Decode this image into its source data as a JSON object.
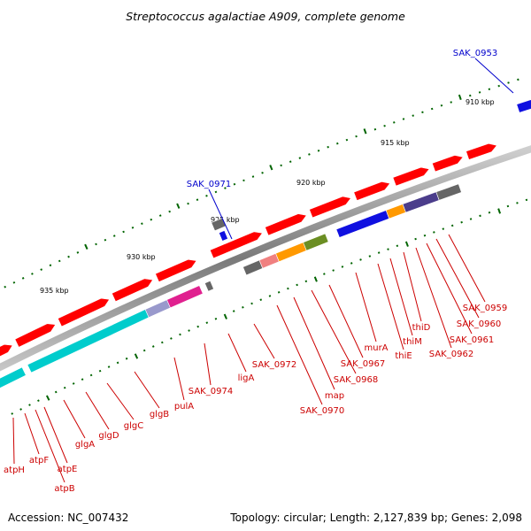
{
  "title": "Streptococcus agalactiae A909, complete genome",
  "ticks": [
    "910 kbp",
    "915 kbp",
    "920 kbp",
    "925 kbp",
    "930 kbp",
    "935 kbp"
  ],
  "genes": [
    "SAK_0953",
    "SAK_0971",
    "SAK_0959",
    "SAK_0960",
    "SAK_0961",
    "SAK_0962",
    "thiD",
    "thiM",
    "thiE",
    "murA",
    "SAK_0967",
    "SAK_0968",
    "map",
    "SAK_0970",
    "SAK_0972",
    "ligA",
    "SAK_0974",
    "pulA",
    "glgB",
    "glgC",
    "glgD",
    "glgA",
    "atpE",
    "atpB",
    "atpF",
    "atpH"
  ],
  "colors": {
    "forward": "#ff0000",
    "blue": "#1010e0",
    "cyan": "#00cccc",
    "grey": "#666666",
    "magenta": "#e0208f",
    "olive": "#6b8e23",
    "orange": "#ff9900",
    "salmon": "#f08080",
    "label_red": "#cc0000",
    "label_blue": "#0000cc",
    "tick_green": "#006400"
  },
  "footer": {
    "accession": "Accession: NC_007432",
    "summary": "Topology: circular; Length: 2,127,839 bp; Genes: 2,098"
  }
}
